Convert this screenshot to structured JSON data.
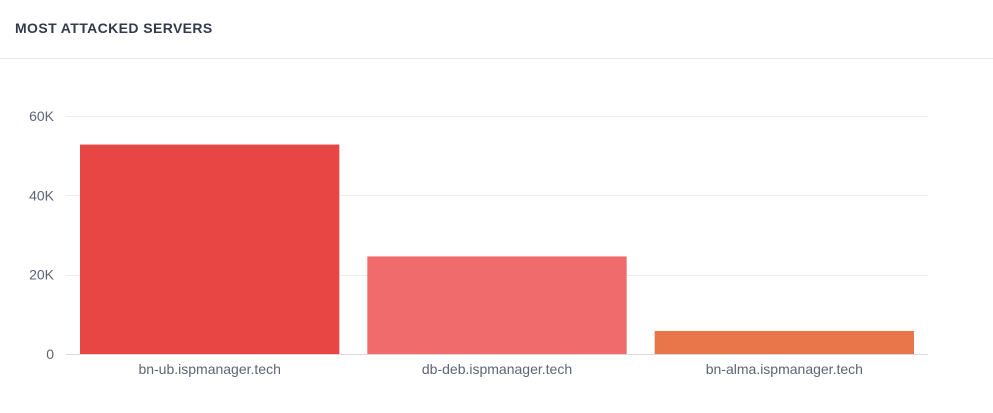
{
  "panel": {
    "title": "MOST ATTACKED SERVERS"
  },
  "chart_data": {
    "type": "bar",
    "title": "MOST ATTACKED SERVERS",
    "xlabel": "",
    "ylabel": "",
    "categories": [
      "bn-ub.ispmanager.tech",
      "db-deb.ispmanager.tech",
      "bn-alma.ispmanager.tech"
    ],
    "values": [
      52800,
      24600,
      5800
    ],
    "colors": [
      "#e84545",
      "#f06b6b",
      "#e8764a"
    ],
    "ylim": [
      0,
      60000
    ],
    "yticks": [
      0,
      20000,
      40000,
      60000
    ],
    "ytick_labels": [
      "0",
      "20K",
      "40K",
      "60K"
    ],
    "grid": true,
    "legend": "none"
  }
}
